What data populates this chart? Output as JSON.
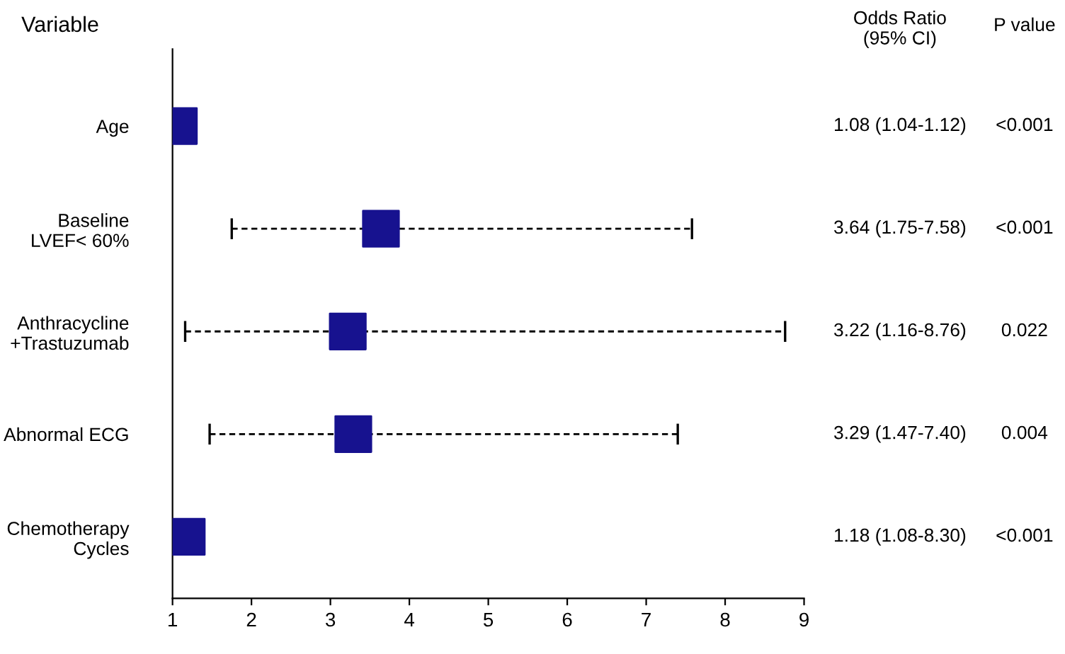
{
  "chart_data": {
    "type": "scatter",
    "orientation": "horizontal",
    "categories": [
      "Age",
      "Baseline\nLVEF< 60%",
      "Anthracycline\n+Trastuzumab",
      "Abnormal ECG",
      "Chemotherapy\nCycles"
    ],
    "values": [
      1.08,
      3.64,
      3.22,
      3.29,
      1.18
    ],
    "errors": [
      null,
      [
        1.75,
        7.58
      ],
      [
        1.16,
        8.76
      ],
      [
        1.47,
        7.4
      ],
      null
    ],
    "value_labels": [
      "1.08 (1.04-1.12)",
      "3.64 (1.75-7.58)",
      "3.22 (1.16-8.76)",
      "3.29 (1.47-7.40)",
      "1.18 (1.08-8.30)"
    ],
    "color": "#17128f",
    "marker": "square",
    "line_style": "dashed",
    "xlim": [
      1,
      9
    ],
    "xticks": [
      1,
      2,
      3,
      4,
      5,
      6,
      7,
      8,
      9
    ],
    "grid": false,
    "legend": false,
    "annotations": [
      "Variable",
      "Odds Ratio\n(95% CI)",
      "P value",
      "<0.001",
      "<0.001",
      "0.022",
      "0.004",
      "<0.001"
    ]
  }
}
